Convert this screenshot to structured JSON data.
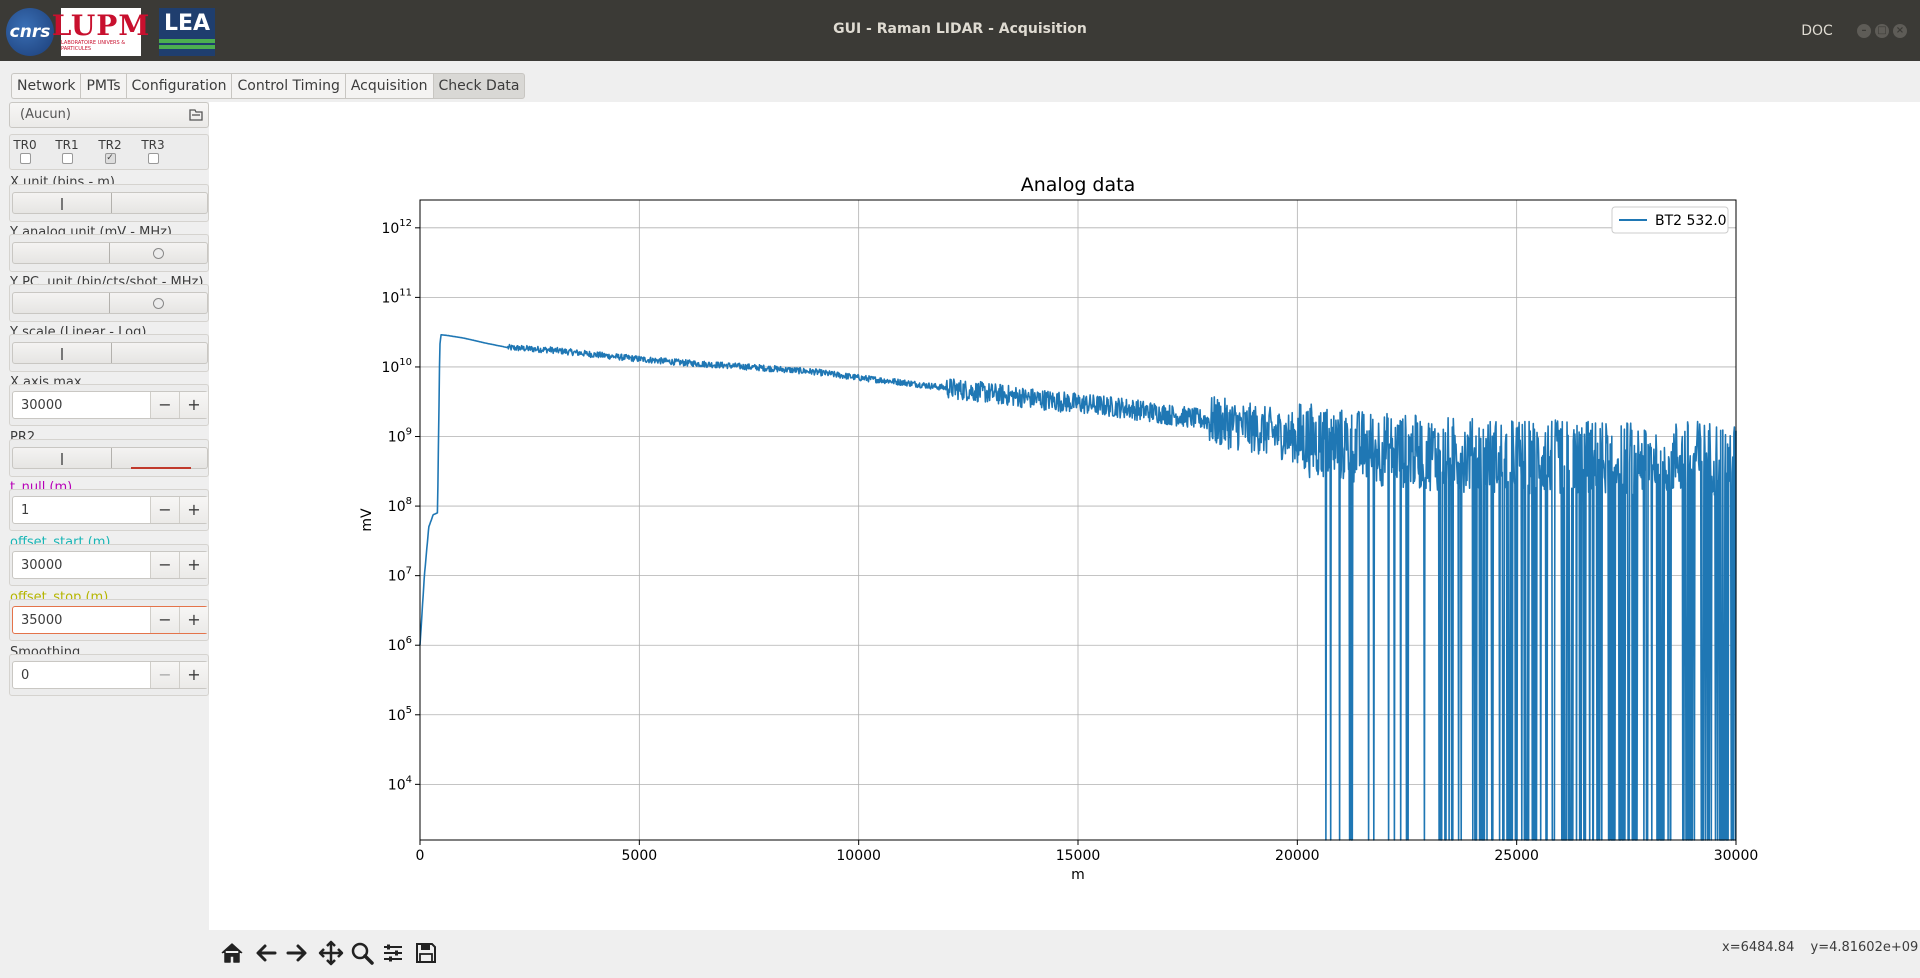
{
  "window": {
    "title": "GUI - Raman LIDAR - Acquisition",
    "doc_label": "DOC",
    "logos": [
      "cnrs-logo",
      "lupm-logo",
      "lea-logo"
    ],
    "logo_text": {
      "cnrs": "cnrs",
      "lupm": "LUPM",
      "lupm_sub": "LABORATOIRE UNIVERS & PARTICULES",
      "lea": "LEA"
    }
  },
  "tabs": [
    {
      "label": "Network",
      "active": false
    },
    {
      "label": "PMTs",
      "active": false
    },
    {
      "label": "Configuration",
      "active": false
    },
    {
      "label": "Control Timing",
      "active": false
    },
    {
      "label": "Acquisition",
      "active": false
    },
    {
      "label": "Check Data",
      "active": true
    }
  ],
  "left_panel": {
    "file_combo": {
      "value": "(Aucun)",
      "icon": "open-file-icon"
    },
    "channels": [
      {
        "label": "TR0",
        "checked": false
      },
      {
        "label": "TR1",
        "checked": false
      },
      {
        "label": "TR2",
        "checked": true
      },
      {
        "label": "TR3",
        "checked": false
      }
    ],
    "x_unit_label": "X unit (bins - m)",
    "y_analog_label": "Y analog unit (mV - MHz)",
    "y_pc_label": "Y PC. unit (bin/cts/shot - MHz)",
    "y_scale_label": "Y scale (Linear - Log)",
    "x_axis_max_label": "X axis max.",
    "x_axis_max_value": "30000",
    "pr2_label": "PR2",
    "t_null_label": "t_null (m)",
    "t_null_value": "1",
    "offset_start_label": "offset_start (m)",
    "offset_start_value": "30000",
    "offset_stop_label": "offset_stop (m)",
    "offset_stop_value": "35000",
    "smoothing_label": "Smoothing",
    "smoothing_value": "0",
    "minus_label": "−",
    "plus_label": "+",
    "label_colors": {
      "t_null": "#b700b7",
      "offset_start": "#19b6b6",
      "offset_stop": "#b5b500"
    }
  },
  "chart_data": {
    "type": "line",
    "title": "Analog data",
    "xlabel": "m",
    "ylabel": "mV",
    "xlim": [
      0,
      30000
    ],
    "ylim_log10": [
      3.2,
      12.4
    ],
    "yscale": "log",
    "grid": true,
    "legend_position": "top-right",
    "x_ticks": [
      0,
      5000,
      10000,
      15000,
      20000,
      25000,
      30000
    ],
    "y_ticks": [
      {
        "base": "10",
        "exp": "4"
      },
      {
        "base": "10",
        "exp": "5"
      },
      {
        "base": "10",
        "exp": "6"
      },
      {
        "base": "10",
        "exp": "7"
      },
      {
        "base": "10",
        "exp": "8"
      },
      {
        "base": "10",
        "exp": "9"
      },
      {
        "base": "10",
        "exp": "10"
      },
      {
        "base": "10",
        "exp": "11"
      },
      {
        "base": "10",
        "exp": "12"
      }
    ],
    "series": [
      {
        "name": "BT2 532.0",
        "color": "#1f77b4",
        "x": [
          0,
          100,
          200,
          300,
          400,
          450,
          480,
          600,
          1000,
          1500,
          2000,
          3000,
          4000,
          5000,
          6000,
          7000,
          8000,
          9000,
          10000,
          11000,
          12000,
          13000,
          14000,
          15000,
          16000,
          17000,
          18000,
          19000,
          20000,
          21000,
          22000,
          23000,
          24000,
          25000,
          26000,
          27000,
          28000,
          29000,
          30000
        ],
        "y": [
          1000000.0,
          10000000.0,
          50000000.0,
          75000000.0,
          80000000.0,
          20000000000.0,
          29000000000.0,
          28500000000.0,
          26000000000.0,
          22000000000.0,
          19000000000.0,
          17500000000.0,
          15000000000.0,
          13000000000.0,
          11500000000.0,
          10500000000.0,
          9500000000.0,
          8500000000.0,
          7000000000.0,
          6000000000.0,
          5000000000.0,
          4200000000.0,
          3500000000.0,
          3000000000.0,
          2600000000.0,
          2100000000.0,
          1700000000.0,
          1300000000.0,
          950000000.0,
          750000000.0,
          650000000.0,
          580000000.0,
          540000000.0,
          520000000.0,
          500000000.0,
          500000000.0,
          500000000.0,
          500000000.0,
          500000000.0
        ]
      }
    ]
  },
  "toolbar": {
    "buttons": [
      "home-icon",
      "back-icon",
      "forward-icon",
      "pan-icon",
      "zoom-icon",
      "configure-subplots-icon",
      "save-icon"
    ],
    "coords_x": "x=6484.84",
    "coords_y": "y=4.81602e+09"
  }
}
